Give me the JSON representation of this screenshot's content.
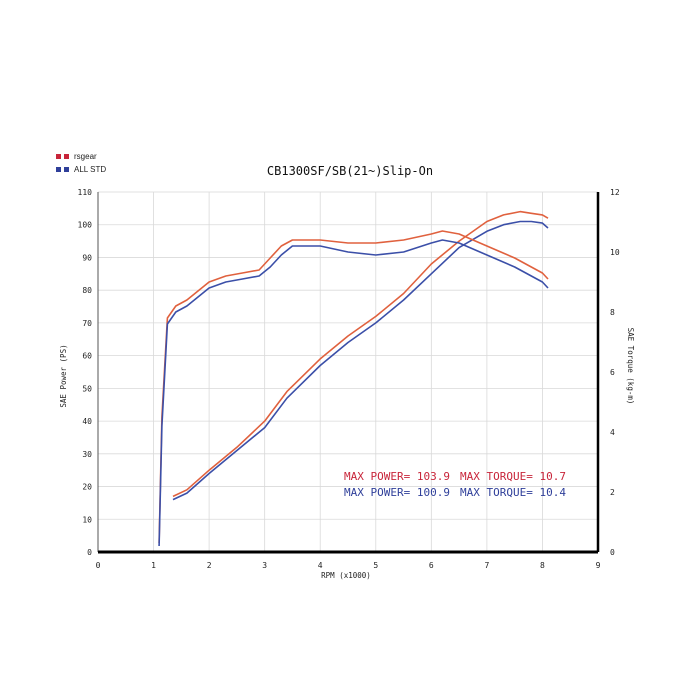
{
  "colors": {
    "rsgear": "#e0613e",
    "all_std": "#3b4fa8",
    "legend_rsgear": "#c8253a",
    "legend_all_std": "#2f3f9a",
    "grid": "#d9d9d9",
    "axis": "#000000"
  },
  "legend": [
    {
      "label": "rsgear",
      "color_key": "legend_rsgear"
    },
    {
      "label": "ALL STD",
      "color_key": "legend_all_std"
    }
  ],
  "annotations": {
    "rsgear_power": "MAX POWER= 103.9",
    "rsgear_torque": "MAX TORQUE= 10.7",
    "std_power": "MAX POWER= 100.9",
    "std_torque": "MAX TORQUE= 10.4"
  },
  "chart_data": {
    "type": "line",
    "title": "CB1300SF/SB(21~)Slip-On",
    "xlabel": "RPM (x1000)",
    "ylabel": "SAE Power (PS)",
    "y2label": "SAE Torque (kg-m)",
    "xlim": [
      0,
      9
    ],
    "ylim": [
      0,
      110
    ],
    "y2lim": [
      0,
      12
    ],
    "x_ticks": [
      "0",
      "1",
      "2",
      "3",
      "4",
      "5",
      "6",
      "7",
      "8",
      "9"
    ],
    "y_ticks": [
      "0",
      "10",
      "20",
      "30",
      "40",
      "50",
      "60",
      "70",
      "80",
      "90",
      "100",
      "110"
    ],
    "y2_ticks": [
      "0",
      "2",
      "4",
      "6",
      "8",
      "10",
      "12"
    ],
    "grid": true,
    "legend_position": "top-left",
    "series": [
      {
        "name": "rsgear",
        "quantity": "power",
        "axis": "left",
        "color_key": "rsgear",
        "x": [
          1.35,
          1.6,
          2.0,
          2.5,
          3.0,
          3.4,
          4.0,
          4.5,
          5.0,
          5.5,
          6.0,
          6.5,
          7.0,
          7.3,
          7.6,
          7.8,
          8.0,
          8.1
        ],
        "y": [
          17,
          19,
          25,
          32,
          40,
          49,
          59,
          66,
          72,
          79,
          88,
          95,
          101,
          103,
          104,
          103.5,
          103,
          102
        ]
      },
      {
        "name": "ALL STD",
        "quantity": "power",
        "axis": "left",
        "color_key": "all_std",
        "x": [
          1.35,
          1.6,
          2.0,
          2.5,
          3.0,
          3.4,
          4.0,
          4.5,
          5.0,
          5.5,
          6.0,
          6.5,
          7.0,
          7.3,
          7.6,
          7.8,
          8.0,
          8.1
        ],
        "y": [
          16,
          18,
          24,
          31,
          38,
          47,
          57,
          64,
          70,
          77,
          85,
          93,
          98,
          100,
          101,
          101,
          100.5,
          99
        ]
      },
      {
        "name": "rsgear",
        "quantity": "torque",
        "axis": "right",
        "color_key": "rsgear",
        "x": [
          1.1,
          1.15,
          1.25,
          1.4,
          1.6,
          1.8,
          2.0,
          2.3,
          2.6,
          2.9,
          3.1,
          3.3,
          3.5,
          4.0,
          4.5,
          5.0,
          5.5,
          6.0,
          6.2,
          6.5,
          7.0,
          7.5,
          8.0,
          8.1
        ],
        "y": [
          0.3,
          4.5,
          7.8,
          8.2,
          8.4,
          8.7,
          9.0,
          9.2,
          9.3,
          9.4,
          9.8,
          10.2,
          10.4,
          10.4,
          10.3,
          10.3,
          10.4,
          10.6,
          10.7,
          10.6,
          10.2,
          9.8,
          9.3,
          9.1
        ]
      },
      {
        "name": "ALL STD",
        "quantity": "torque",
        "axis": "right",
        "color_key": "all_std",
        "x": [
          1.1,
          1.15,
          1.25,
          1.4,
          1.6,
          1.8,
          2.0,
          2.3,
          2.6,
          2.9,
          3.1,
          3.3,
          3.5,
          4.0,
          4.5,
          5.0,
          5.5,
          6.0,
          6.2,
          6.5,
          7.0,
          7.5,
          8.0,
          8.1
        ],
        "y": [
          0.2,
          4.2,
          7.6,
          8.0,
          8.2,
          8.5,
          8.8,
          9.0,
          9.1,
          9.2,
          9.5,
          9.9,
          10.2,
          10.2,
          10.0,
          9.9,
          10.0,
          10.3,
          10.4,
          10.3,
          9.9,
          9.5,
          9.0,
          8.8
        ]
      }
    ]
  }
}
